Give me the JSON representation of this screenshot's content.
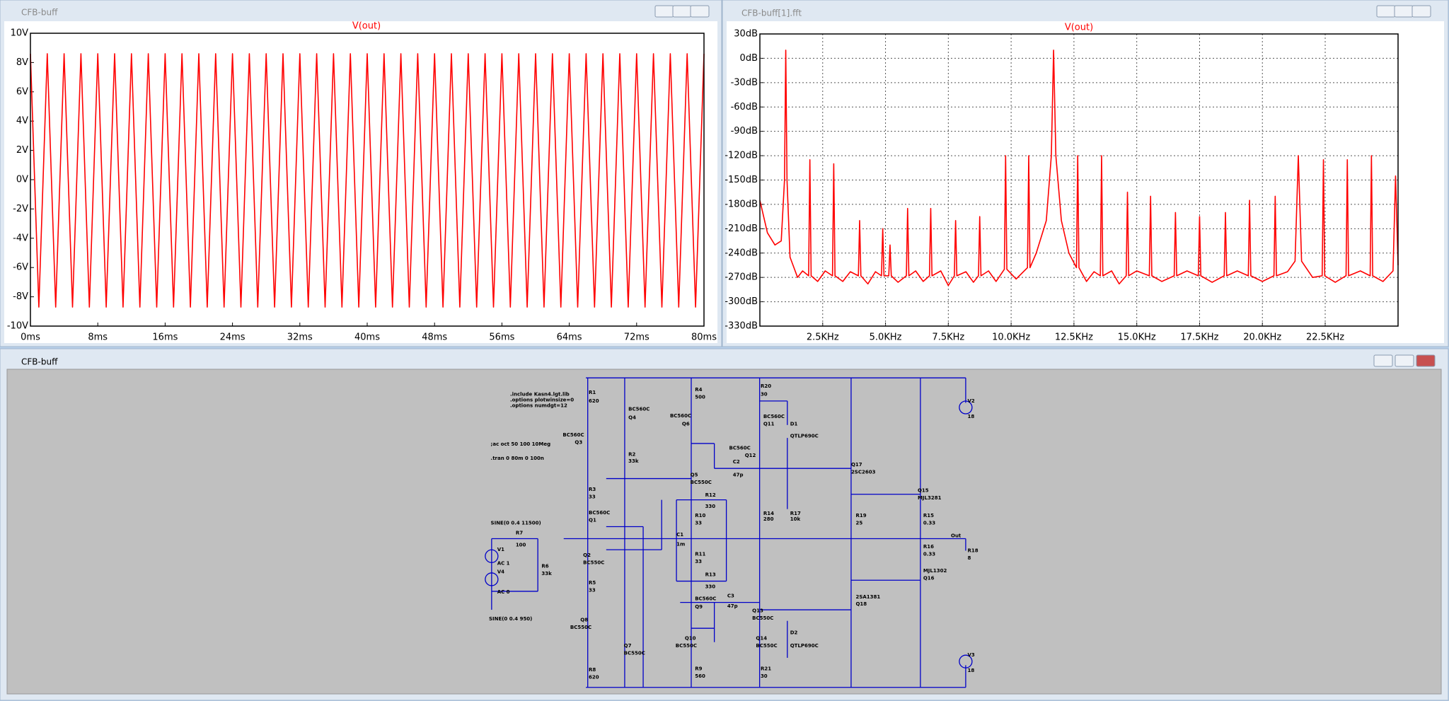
{
  "windows": [
    {
      "title": "CFB-buff"
    },
    {
      "title": "CFB-buff[1].fft"
    },
    {
      "title": "CFB-buff"
    }
  ],
  "chart_data": [
    {
      "type": "line",
      "title": "V(out)",
      "x": [
        0,
        1,
        2,
        3,
        4,
        5,
        6,
        7,
        8,
        9,
        10,
        11,
        12,
        13,
        14,
        15,
        16,
        17,
        18,
        19,
        20,
        21,
        22,
        23,
        24,
        25,
        26,
        27,
        28,
        29,
        30,
        31,
        32,
        33,
        34,
        35,
        36,
        37,
        38,
        39,
        40,
        41,
        42,
        43,
        44,
        45,
        46,
        47,
        48,
        49,
        50,
        51,
        52,
        53,
        54,
        55,
        56,
        57,
        58,
        59,
        60,
        61,
        62,
        63,
        64,
        65,
        66,
        67,
        68,
        69,
        70,
        71,
        72,
        73,
        74,
        75,
        76,
        77,
        78,
        79,
        80
      ],
      "series": [
        {
          "name": "V(out)",
          "color": "#ff0000",
          "values": [
            8.6,
            -8.7,
            8.6,
            -8.7,
            8.6,
            -8.7,
            8.6,
            -8.7,
            8.6,
            -8.7,
            8.6,
            -8.7,
            8.6,
            -8.7,
            8.6,
            -8.7,
            8.6,
            -8.7,
            8.6,
            -8.7,
            8.6,
            -8.7,
            8.6,
            -8.7,
            8.6,
            -8.7,
            8.6,
            -8.7,
            8.6,
            -8.7,
            8.6,
            -8.7,
            8.6,
            -8.7,
            8.6,
            -8.7,
            8.6,
            -8.7,
            8.6,
            -8.7,
            8.6,
            -8.7,
            8.6,
            -8.7,
            8.6,
            -8.7,
            8.6,
            -8.7,
            8.6,
            -8.7,
            8.6,
            -8.7,
            8.6,
            -8.7,
            8.6,
            -8.7,
            8.6,
            -8.7,
            8.6,
            -8.7,
            8.6,
            -8.7,
            8.6,
            -8.7,
            8.6,
            -8.7,
            8.6,
            -8.7,
            8.6,
            -8.7,
            8.6,
            -8.7,
            8.6,
            -8.7,
            8.6,
            -8.7,
            8.6,
            -8.7,
            8.6,
            -8.7,
            8.6
          ]
        }
      ],
      "xlim": [
        0,
        80
      ],
      "xticks": [
        {
          "value": 0,
          "label": "0ms"
        },
        {
          "value": 8,
          "label": "8ms"
        },
        {
          "value": 16,
          "label": "16ms"
        },
        {
          "value": 24,
          "label": "24ms"
        },
        {
          "value": 32,
          "label": "32ms"
        },
        {
          "value": 40,
          "label": "40ms"
        },
        {
          "value": 48,
          "label": "48ms"
        },
        {
          "value": 56,
          "label": "56ms"
        },
        {
          "value": 64,
          "label": "64ms"
        },
        {
          "value": 72,
          "label": "72ms"
        },
        {
          "value": 80,
          "label": "80ms"
        }
      ],
      "ylim": [
        -10,
        10
      ],
      "yticks": [
        {
          "value": 10,
          "label": "10V"
        },
        {
          "value": 8,
          "label": "8V"
        },
        {
          "value": 6,
          "label": "6V"
        },
        {
          "value": 4,
          "label": "4V"
        },
        {
          "value": 2,
          "label": "2V"
        },
        {
          "value": 0,
          "label": "0V"
        },
        {
          "value": -2,
          "label": "-2V"
        },
        {
          "value": -4,
          "label": "-4V"
        },
        {
          "value": -6,
          "label": "-6V"
        },
        {
          "value": -8,
          "label": "-8V"
        },
        {
          "value": -10,
          "label": "-10V"
        }
      ],
      "grid": false
    },
    {
      "type": "line",
      "title": "V(out)",
      "x": [
        0,
        0.3,
        0.6,
        0.85,
        0.98,
        1.03,
        1.08,
        1.2,
        1.5,
        1.7,
        1.94,
        1.99,
        2.04,
        2.3,
        2.6,
        2.89,
        2.94,
        2.99,
        3.3,
        3.6,
        3.92,
        3.97,
        4.02,
        4.3,
        4.6,
        4.84,
        4.89,
        4.94,
        5.13,
        5.18,
        5.23,
        5.5,
        5.83,
        5.88,
        5.93,
        6.2,
        6.5,
        6.75,
        6.8,
        6.85,
        7.2,
        7.5,
        7.74,
        7.79,
        7.84,
        8.2,
        8.5,
        8.7,
        8.75,
        8.8,
        9.1,
        9.4,
        9.73,
        9.78,
        9.83,
        10.2,
        10.65,
        10.7,
        10.75,
        11.0,
        11.4,
        11.6,
        11.69,
        11.78,
        12.0,
        12.3,
        12.6,
        12.65,
        12.7,
        13.0,
        13.3,
        13.55,
        13.6,
        13.65,
        14.0,
        14.3,
        14.58,
        14.63,
        14.68,
        15.0,
        15.5,
        15.55,
        15.6,
        16.0,
        16.49,
        16.54,
        16.59,
        17.0,
        17.45,
        17.5,
        17.55,
        18.0,
        18.48,
        18.53,
        18.58,
        19.0,
        19.44,
        19.49,
        19.54,
        20.0,
        20.46,
        20.51,
        20.56,
        21.0,
        21.3,
        21.43,
        21.56,
        22.0,
        22.38,
        22.43,
        22.48,
        22.9,
        23.33,
        23.38,
        23.43,
        23.9,
        24.29,
        24.34,
        24.39,
        24.8,
        25.2,
        25.3,
        25.4
      ],
      "series": [
        {
          "name": "V(out)",
          "color": "#ff0000",
          "values": [
            -175,
            -215,
            -230,
            -225,
            -150,
            10,
            -150,
            -245,
            -270,
            -262,
            -268,
            -125,
            -268,
            -275,
            -262,
            -268,
            -130,
            -268,
            -275,
            -263,
            -268,
            -200,
            -268,
            -278,
            -263,
            -268,
            -210,
            -268,
            -268,
            -230,
            -268,
            -276,
            -268,
            -185,
            -268,
            -262,
            -275,
            -268,
            -185,
            -268,
            -262,
            -280,
            -268,
            -200,
            -268,
            -263,
            -276,
            -268,
            -195,
            -268,
            -262,
            -275,
            -260,
            -120,
            -260,
            -272,
            -258,
            -120,
            -258,
            -240,
            -200,
            -120,
            10,
            -120,
            -200,
            -240,
            -258,
            -120,
            -258,
            -275,
            -263,
            -268,
            -120,
            -268,
            -262,
            -278,
            -268,
            -165,
            -268,
            -262,
            -268,
            -170,
            -268,
            -275,
            -268,
            -190,
            -268,
            -262,
            -268,
            -195,
            -268,
            -276,
            -268,
            -190,
            -268,
            -262,
            -268,
            -175,
            -268,
            -275,
            -268,
            -170,
            -268,
            -263,
            -250,
            -120,
            -250,
            -270,
            -268,
            -125,
            -268,
            -276,
            -268,
            -125,
            -268,
            -262,
            -268,
            -120,
            -268,
            -275,
            -262,
            -145,
            -255
          ]
        }
      ],
      "xlim": [
        0,
        25.4
      ],
      "xticks": [
        {
          "value": 2.5,
          "label": "2.5KHz"
        },
        {
          "value": 5,
          "label": "5.0KHz"
        },
        {
          "value": 7.5,
          "label": "7.5KHz"
        },
        {
          "value": 10,
          "label": "10.0KHz"
        },
        {
          "value": 12.5,
          "label": "12.5KHz"
        },
        {
          "value": 15,
          "label": "15.0KHz"
        },
        {
          "value": 17.5,
          "label": "17.5KHz"
        },
        {
          "value": 20,
          "label": "20.0KHz"
        },
        {
          "value": 22.5,
          "label": "22.5KHz"
        }
      ],
      "ylim": [
        -330,
        30
      ],
      "yticks": [
        {
          "value": 30,
          "label": "30dB"
        },
        {
          "value": 0,
          "label": "0dB"
        },
        {
          "value": -30,
          "label": "-30dB"
        },
        {
          "value": -60,
          "label": "-60dB"
        },
        {
          "value": -90,
          "label": "-90dB"
        },
        {
          "value": -120,
          "label": "-120dB"
        },
        {
          "value": -150,
          "label": "-150dB"
        },
        {
          "value": -180,
          "label": "-180dB"
        },
        {
          "value": -210,
          "label": "-210dB"
        },
        {
          "value": -240,
          "label": "-240dB"
        },
        {
          "value": -270,
          "label": "-270dB"
        },
        {
          "value": -300,
          "label": "-300dB"
        },
        {
          "value": -330,
          "label": "-330dB"
        }
      ],
      "grid": true
    }
  ],
  "schematic": {
    "labels": [
      ".include Kasn4.lgt.lib",
      ".options plotwinsize=0",
      ".options numdgt=12",
      ";ac oct 50 100 10Meg",
      ".tran 0 80m 0 100n",
      "SINE(0 0.4 11500)",
      "SINE(0 0.4 950)",
      "R1",
      "620",
      "BC560C",
      "Q4",
      "BC560C",
      "Q3",
      "R2",
      "33k",
      "R3",
      "33",
      "BC560C",
      "Q1",
      "R7",
      "100",
      "V1",
      "AC 1",
      "V4",
      "AC 0",
      "R6",
      "33k",
      "Q2",
      "BC550C",
      "R5",
      "33",
      "Q8",
      "BC550C",
      "Q7",
      "BC550C",
      "R8",
      "620",
      "R4",
      "500",
      "BC560C",
      "Q6",
      "Q5",
      "BC550C",
      "R12",
      "330",
      "R10",
      "33",
      "C1",
      "1m",
      "R11",
      "33",
      "R13",
      "330",
      "BC560C",
      "Q9",
      "Q10",
      "BC550C",
      "R9",
      "560",
      "R20",
      "30",
      "BC560C",
      "Q11",
      "D1",
      "QTLP690C",
      "BC560C",
      "Q12",
      "C2",
      "47p",
      "R14",
      "280",
      "R17",
      "10k",
      "C3",
      "47p",
      "Q13",
      "BC550C",
      "Q14",
      "BC550C",
      "D2",
      "QTLP690C",
      "R21",
      "30",
      "Q17",
      "2SC2603",
      "R19",
      "25",
      "2SA1381",
      "Q18",
      "Q15",
      "MJL3281",
      "R15",
      "0.33",
      "Out",
      "R16",
      "0.33",
      "R18",
      "8",
      "MJL1302",
      "Q16",
      "V2",
      "18",
      "V3",
      "18"
    ]
  }
}
